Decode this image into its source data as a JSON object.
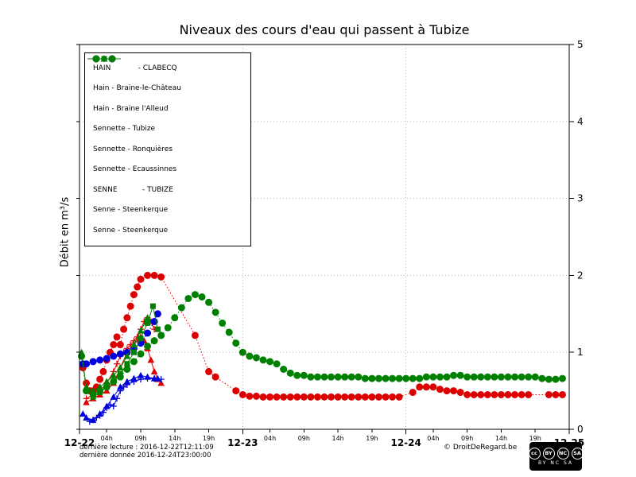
{
  "footer": {
    "line1": "dernière lecture : 2016-12-22T12:11:09",
    "line2": "dernière donnée  2016-12-24T23:00:00",
    "copyright": "© DroitDeRegard.be",
    "cc_logo": "cc",
    "cc_icons": [
      "BY",
      "NC",
      "SA"
    ],
    "cc_text": "BY  NC  SA"
  },
  "chart_data": {
    "type": "line",
    "title": "Niveaux des cours d'eau qui passent à Tubize",
    "ylabel": "Débit en m³/s",
    "ylim": [
      0,
      5
    ],
    "xlim_hours": [
      0,
      72
    ],
    "grid": {
      "h_lines": [
        1,
        2,
        3,
        4
      ],
      "v_lines": [
        24,
        48
      ]
    },
    "legend_position": "upper-left",
    "y_ticks": [
      0,
      1,
      2,
      3,
      4,
      5
    ],
    "x_major_ticks": [
      {
        "hour": 0,
        "label": "12-22"
      },
      {
        "hour": 24,
        "label": "12-23"
      },
      {
        "hour": 48,
        "label": "12-24"
      },
      {
        "hour": 72,
        "label": "12-25"
      }
    ],
    "x_minor_ticks": [
      {
        "hour": 4,
        "label": "04h"
      },
      {
        "hour": 9,
        "label": "09h"
      },
      {
        "hour": 14,
        "label": "14h"
      },
      {
        "hour": 19,
        "label": "19h"
      },
      {
        "hour": 28,
        "label": "04h"
      },
      {
        "hour": 33,
        "label": "09h"
      },
      {
        "hour": 38,
        "label": "14h"
      },
      {
        "hour": 43,
        "label": "19h"
      },
      {
        "hour": 52,
        "label": "04h"
      },
      {
        "hour": 57,
        "label": "09h"
      },
      {
        "hour": 62,
        "label": "14h"
      },
      {
        "hour": 67,
        "label": "19h"
      }
    ],
    "series": [
      {
        "name": "HAIN - CLABECQ",
        "label": "HAIN            - CLABECQ",
        "color": "#dd0000",
        "marker": "circle",
        "line": "dotted",
        "points": [
          [
            0.5,
            0.8
          ],
          [
            1,
            0.6
          ],
          [
            1.5,
            0.5
          ],
          [
            2,
            0.5
          ],
          [
            2.5,
            0.55
          ],
          [
            3,
            0.65
          ],
          [
            3.5,
            0.75
          ],
          [
            4,
            0.9
          ],
          [
            4.5,
            1.0
          ],
          [
            5,
            1.1
          ],
          [
            5.5,
            1.2
          ],
          [
            6,
            1.1
          ],
          [
            6.5,
            1.3
          ],
          [
            7,
            1.45
          ],
          [
            7.5,
            1.6
          ],
          [
            8,
            1.75
          ],
          [
            8.5,
            1.85
          ],
          [
            9,
            1.95
          ],
          [
            10,
            2.0
          ],
          [
            11,
            2.0
          ],
          [
            12,
            1.98
          ],
          [
            17,
            1.22
          ],
          [
            19,
            0.75
          ],
          [
            20,
            0.68
          ],
          [
            23,
            0.5
          ],
          [
            24,
            0.45
          ],
          [
            25,
            0.43
          ],
          [
            26,
            0.43
          ],
          [
            27,
            0.42
          ],
          [
            28,
            0.42
          ],
          [
            29,
            0.42
          ],
          [
            30,
            0.42
          ],
          [
            31,
            0.42
          ],
          [
            32,
            0.42
          ],
          [
            33,
            0.42
          ],
          [
            34,
            0.42
          ],
          [
            35,
            0.42
          ],
          [
            36,
            0.42
          ],
          [
            37,
            0.42
          ],
          [
            38,
            0.42
          ],
          [
            39,
            0.42
          ],
          [
            40,
            0.42
          ],
          [
            41,
            0.42
          ],
          [
            42,
            0.42
          ],
          [
            43,
            0.42
          ],
          [
            44,
            0.42
          ],
          [
            45,
            0.42
          ],
          [
            46,
            0.42
          ],
          [
            47,
            0.42
          ],
          [
            49,
            0.48
          ],
          [
            50,
            0.55
          ],
          [
            51,
            0.55
          ],
          [
            52,
            0.55
          ],
          [
            53,
            0.52
          ],
          [
            54,
            0.5
          ],
          [
            55,
            0.5
          ],
          [
            56,
            0.48
          ],
          [
            57,
            0.45
          ],
          [
            58,
            0.45
          ],
          [
            59,
            0.45
          ],
          [
            60,
            0.45
          ],
          [
            61,
            0.45
          ],
          [
            62,
            0.45
          ],
          [
            63,
            0.45
          ],
          [
            64,
            0.45
          ],
          [
            65,
            0.45
          ],
          [
            66,
            0.45
          ],
          [
            69,
            0.45
          ],
          [
            70,
            0.45
          ],
          [
            71,
            0.45
          ]
        ]
      },
      {
        "name": "Hain - Braine-le-Château",
        "label": "Hain - Braine-le-Château",
        "color": "#dd0000",
        "marker": "plus",
        "line": "solid",
        "points": [
          [
            1,
            0.4
          ],
          [
            2,
            0.45
          ],
          [
            3,
            0.5
          ],
          [
            4,
            0.6
          ],
          [
            5,
            0.75
          ],
          [
            5.5,
            0.85
          ],
          [
            6,
            0.95
          ],
          [
            6.5,
            1.0
          ],
          [
            7,
            1.05
          ],
          [
            7.5,
            1.1
          ],
          [
            8,
            1.15
          ],
          [
            8.5,
            1.2
          ],
          [
            9,
            1.3
          ],
          [
            9.5,
            1.4
          ],
          [
            10,
            1.45
          ],
          [
            10.5,
            1.4
          ],
          [
            11,
            1.3
          ]
        ]
      },
      {
        "name": "Hain - Braine l'Alleud",
        "label": "Hain - Braine l'Alleud",
        "color": "#dd0000",
        "marker": "triangle",
        "line": "solid",
        "points": [
          [
            1,
            0.35
          ],
          [
            2,
            0.4
          ],
          [
            3,
            0.45
          ],
          [
            4,
            0.5
          ],
          [
            5,
            0.6
          ],
          [
            6,
            0.8
          ],
          [
            7,
            1.0
          ],
          [
            8,
            1.1
          ],
          [
            9,
            1.2
          ],
          [
            9.5,
            1.15
          ],
          [
            10,
            1.05
          ],
          [
            10.5,
            0.9
          ],
          [
            11,
            0.75
          ],
          [
            11.5,
            0.65
          ],
          [
            12,
            0.6
          ]
        ]
      },
      {
        "name": "Sennette - Tubize",
        "label": "Sennette - Tubize",
        "color": "#0000dd",
        "marker": "circle",
        "line": "dotted",
        "points": [
          [
            0.5,
            0.85
          ],
          [
            1,
            0.85
          ],
          [
            2,
            0.88
          ],
          [
            3,
            0.9
          ],
          [
            4,
            0.92
          ],
          [
            5,
            0.95
          ],
          [
            6,
            0.98
          ],
          [
            7,
            1.0
          ],
          [
            8,
            1.05
          ],
          [
            9,
            1.12
          ],
          [
            10,
            1.25
          ],
          [
            11,
            1.4
          ],
          [
            11.5,
            1.5
          ]
        ]
      },
      {
        "name": "Sennette - Ronquières",
        "label": "Sennette - Ronquières",
        "color": "#0000dd",
        "marker": "plus",
        "line": "solid",
        "points": [
          [
            1.5,
            0.1
          ],
          [
            2,
            0.12
          ],
          [
            2.5,
            0.15
          ],
          [
            3,
            0.18
          ],
          [
            3.5,
            0.22
          ],
          [
            4,
            0.28
          ],
          [
            4.5,
            0.32
          ],
          [
            5,
            0.3
          ],
          [
            5.5,
            0.4
          ],
          [
            6,
            0.5
          ],
          [
            6.5,
            0.55
          ],
          [
            7,
            0.58
          ],
          [
            8,
            0.62
          ],
          [
            9,
            0.65
          ],
          [
            10,
            0.66
          ],
          [
            11,
            0.66
          ],
          [
            12,
            0.65
          ]
        ]
      },
      {
        "name": "Sennette - Ecaussinnes",
        "label": "Sennette - Ecaussinnes",
        "color": "#0000dd",
        "marker": "triangle",
        "line": "solid",
        "points": [
          [
            0.5,
            0.2
          ],
          [
            1,
            0.15
          ],
          [
            2,
            0.12
          ],
          [
            3,
            0.2
          ],
          [
            4,
            0.3
          ],
          [
            5,
            0.42
          ],
          [
            6,
            0.55
          ],
          [
            7,
            0.62
          ],
          [
            8,
            0.66
          ],
          [
            9,
            0.7
          ],
          [
            10,
            0.68
          ],
          [
            11,
            0.66
          ],
          [
            11.5,
            0.66
          ]
        ]
      },
      {
        "name": "SENNE - TUBIZE",
        "label": "SENNE           - TUBIZE",
        "color": "#008000",
        "marker": "circle",
        "line": "dotted",
        "points": [
          [
            0.3,
            0.95
          ],
          [
            1,
            0.5
          ],
          [
            2,
            0.45
          ],
          [
            3,
            0.5
          ],
          [
            4,
            0.55
          ],
          [
            5,
            0.62
          ],
          [
            6,
            0.68
          ],
          [
            7,
            0.78
          ],
          [
            8,
            0.88
          ],
          [
            9,
            0.98
          ],
          [
            10,
            1.08
          ],
          [
            11,
            1.15
          ],
          [
            12,
            1.22
          ],
          [
            13,
            1.32
          ],
          [
            14,
            1.45
          ],
          [
            15,
            1.58
          ],
          [
            16,
            1.7
          ],
          [
            17,
            1.75
          ],
          [
            18,
            1.72
          ],
          [
            19,
            1.65
          ],
          [
            20,
            1.52
          ],
          [
            21,
            1.38
          ],
          [
            22,
            1.26
          ],
          [
            23,
            1.12
          ],
          [
            24,
            1.0
          ],
          [
            25,
            0.95
          ],
          [
            26,
            0.93
          ],
          [
            27,
            0.9
          ],
          [
            28,
            0.88
          ],
          [
            29,
            0.85
          ],
          [
            30,
            0.78
          ],
          [
            31,
            0.73
          ],
          [
            32,
            0.7
          ],
          [
            33,
            0.7
          ],
          [
            34,
            0.68
          ],
          [
            35,
            0.68
          ],
          [
            36,
            0.68
          ],
          [
            37,
            0.68
          ],
          [
            38,
            0.68
          ],
          [
            39,
            0.68
          ],
          [
            40,
            0.68
          ],
          [
            41,
            0.68
          ],
          [
            42,
            0.66
          ],
          [
            43,
            0.66
          ],
          [
            44,
            0.66
          ],
          [
            45,
            0.66
          ],
          [
            46,
            0.66
          ],
          [
            47,
            0.66
          ],
          [
            48,
            0.66
          ],
          [
            49,
            0.66
          ],
          [
            50,
            0.66
          ],
          [
            51,
            0.68
          ],
          [
            52,
            0.68
          ],
          [
            53,
            0.68
          ],
          [
            54,
            0.68
          ],
          [
            55,
            0.7
          ],
          [
            56,
            0.7
          ],
          [
            57,
            0.68
          ],
          [
            58,
            0.68
          ],
          [
            59,
            0.68
          ],
          [
            60,
            0.68
          ],
          [
            61,
            0.68
          ],
          [
            62,
            0.68
          ],
          [
            63,
            0.68
          ],
          [
            64,
            0.68
          ],
          [
            65,
            0.68
          ],
          [
            66,
            0.68
          ],
          [
            67,
            0.68
          ],
          [
            68,
            0.66
          ],
          [
            69,
            0.65
          ],
          [
            70,
            0.65
          ],
          [
            71,
            0.66
          ]
        ]
      },
      {
        "name": "Senne - Steenkerque",
        "label": "Senne - Steenkerque",
        "color": "#008000",
        "marker": "triangle",
        "line": "solid",
        "points": [
          [
            0.3,
            1.0
          ],
          [
            1,
            0.55
          ],
          [
            2,
            0.5
          ],
          [
            3,
            0.55
          ],
          [
            4,
            0.62
          ],
          [
            5,
            0.7
          ],
          [
            6,
            0.8
          ],
          [
            7,
            0.95
          ],
          [
            8,
            1.1
          ],
          [
            9,
            1.28
          ],
          [
            10,
            1.45
          ]
        ]
      },
      {
        "name": "Senne - Steenkerque",
        "label": "Senne - Steenkerque",
        "color": "#008000",
        "marker": "square",
        "line": "solid",
        "points": [
          [
            2,
            0.42
          ],
          [
            3,
            0.48
          ],
          [
            4,
            0.55
          ],
          [
            5,
            0.62
          ],
          [
            6,
            0.72
          ],
          [
            7,
            0.85
          ],
          [
            8,
            1.0
          ],
          [
            9,
            1.18
          ],
          [
            10,
            1.38
          ],
          [
            10.8,
            1.6
          ],
          [
            11.5,
            1.3
          ]
        ]
      }
    ]
  }
}
